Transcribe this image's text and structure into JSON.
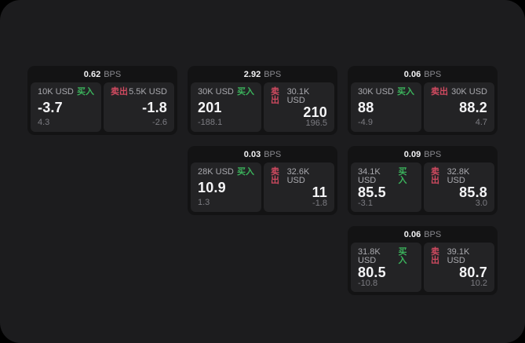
{
  "labels": {
    "bps": "BPS",
    "buy": "买入",
    "sell": "卖出"
  },
  "colors": {
    "page_bg": "#000000",
    "panel_bg": "#1c1c1e",
    "card_bg": "#131314",
    "tile_bg": "#232325",
    "buy_accent": "#3bb35c",
    "sell_accent": "#d04a60",
    "price_text": "#f5f5f7",
    "muted_text": "#7c7c82"
  },
  "cards": [
    {
      "bps": "0.62",
      "buy": {
        "amount": "10K USD",
        "price": "-3.7",
        "delta": "4.3"
      },
      "sell": {
        "amount": "5.5K USD",
        "price": "-1.8",
        "delta": "-2.6"
      }
    },
    {
      "bps": "2.92",
      "buy": {
        "amount": "30K USD",
        "price": "201",
        "delta": "-188.1"
      },
      "sell": {
        "amount": "30.1K USD",
        "price": "210",
        "delta": "196.5"
      }
    },
    {
      "bps": "0.06",
      "buy": {
        "amount": "30K USD",
        "price": "88",
        "delta": "-4.9"
      },
      "sell": {
        "amount": "30K USD",
        "price": "88.2",
        "delta": "4.7"
      }
    },
    {
      "bps": "0.03",
      "buy": {
        "amount": "28K USD",
        "price": "10.9",
        "delta": "1.3"
      },
      "sell": {
        "amount": "32.6K USD",
        "price": "11",
        "delta": "-1.8"
      }
    },
    {
      "bps": "0.09",
      "buy": {
        "amount": "34.1K USD",
        "price": "85.5",
        "delta": "-3.1"
      },
      "sell": {
        "amount": "32.8K USD",
        "price": "85.8",
        "delta": "3.0"
      }
    },
    {
      "bps": "0.06",
      "buy": {
        "amount": "31.8K USD",
        "price": "80.5",
        "delta": "-10.8"
      },
      "sell": {
        "amount": "39.1K USD",
        "price": "80.7",
        "delta": "10.2"
      }
    }
  ]
}
